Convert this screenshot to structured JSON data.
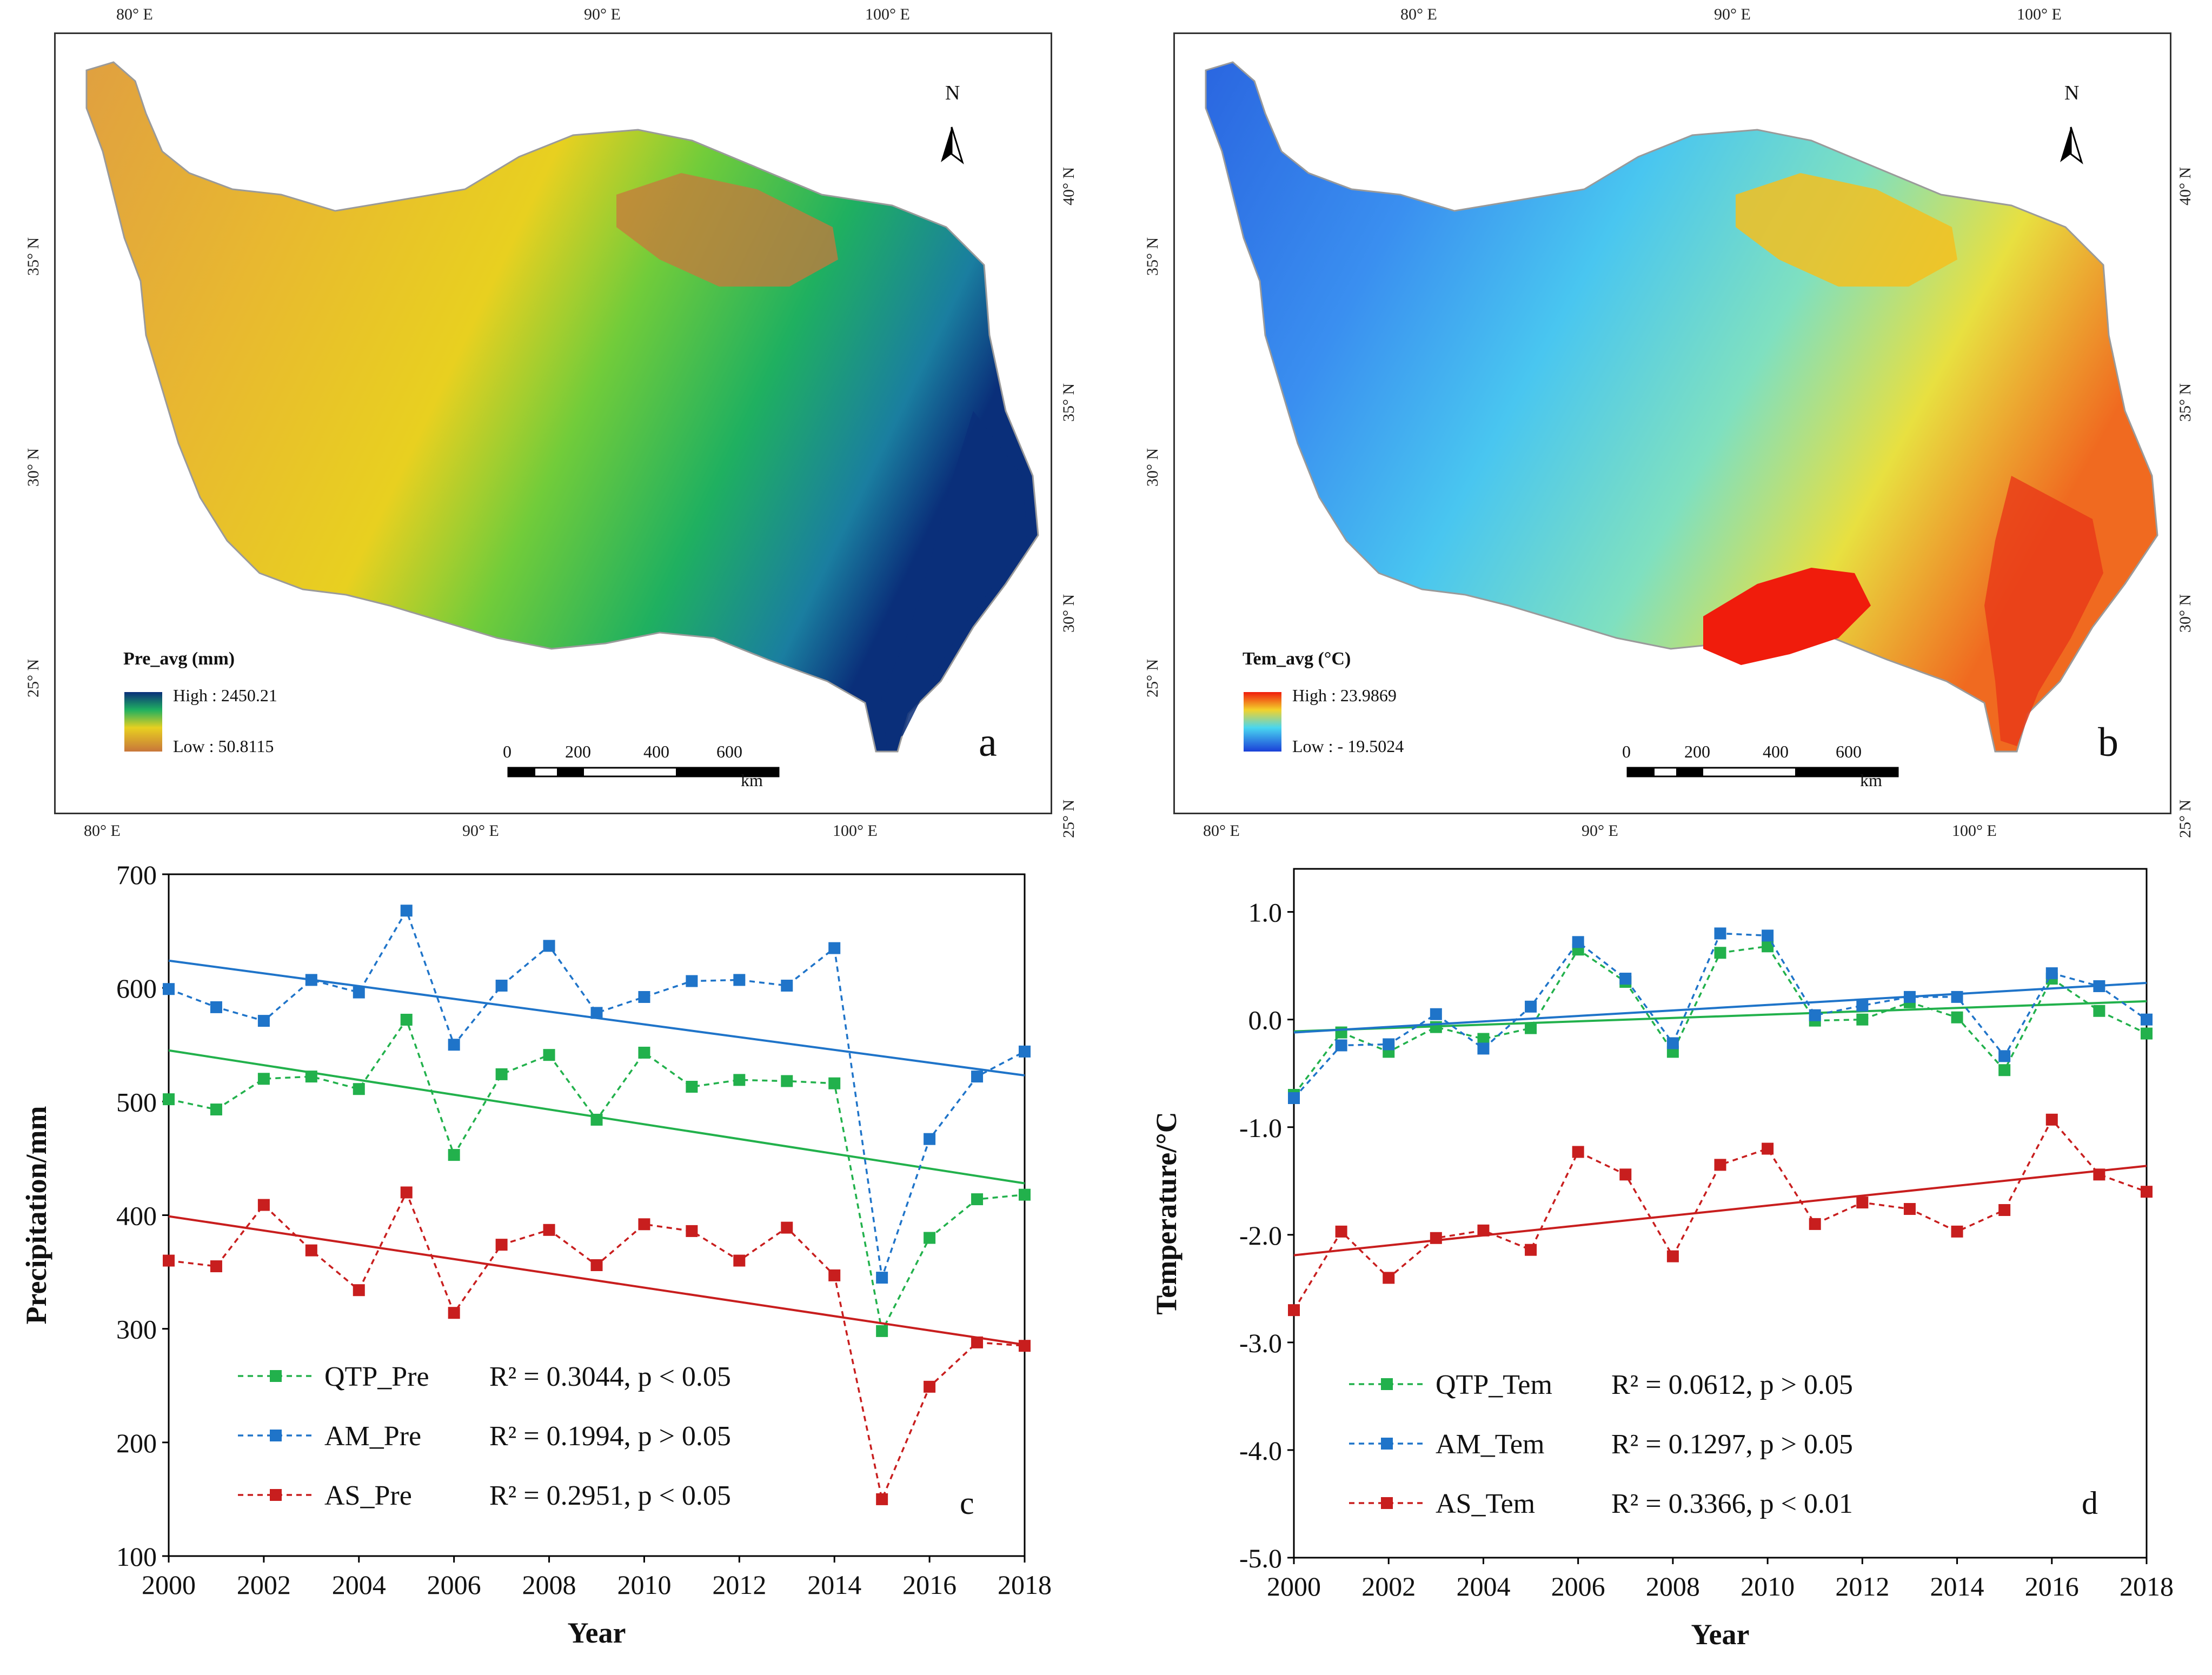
{
  "maps": [
    {
      "id": "a",
      "letter": "a",
      "legend_title": "Pre_avg (mm)",
      "legend_high": "High : 2450.21",
      "legend_low": "Low : 50.8115",
      "top_lon": [
        "80° E",
        "90° E",
        "100° E"
      ],
      "bottom_lon": [
        "80° E",
        "90° E",
        "100° E"
      ],
      "left_lat": [
        "35° N",
        "30° N",
        "25° N"
      ],
      "right_lat": [
        "40° N",
        "35° N",
        "30° N",
        "25° N"
      ],
      "scale_ticks": [
        "0",
        "200",
        "400",
        "600"
      ],
      "scale_unit": "km",
      "north": "N",
      "colors": {
        "low": "#c8763a",
        "mid": "#e8d018",
        "green": "#2cb840",
        "high": "#0a2f7a",
        "desert": "#c8783c"
      }
    },
    {
      "id": "b",
      "letter": "b",
      "legend_title": "Tem_avg (°C)",
      "legend_high": "High : 23.9869",
      "legend_low": "Low :  - 19.5024",
      "top_lon": [
        "80° E",
        "90° E",
        "100° E"
      ],
      "bottom_lon": [
        "80° E",
        "90° E",
        "100° E"
      ],
      "left_lat": [
        "35° N",
        "30° N",
        "25° N"
      ],
      "right_lat": [
        "40° N",
        "35° N",
        "30° N",
        "25° N"
      ],
      "scale_ticks": [
        "0",
        "200",
        "400",
        "600"
      ],
      "scale_unit": "km",
      "north": "N",
      "colors": {
        "low": "#1a3fd8",
        "mid": "#49d6f0",
        "warm": "#f3d22a",
        "high": "#f01c0c"
      }
    }
  ],
  "chart_data": [
    {
      "id": "c",
      "type": "line",
      "letter": "c",
      "xlabel": "Year",
      "ylabel": "Precipitation/mm",
      "x": [
        2000,
        2001,
        2002,
        2003,
        2004,
        2005,
        2006,
        2007,
        2008,
        2009,
        2010,
        2011,
        2012,
        2013,
        2014,
        2015,
        2016,
        2017,
        2018
      ],
      "xticks": [
        "2000",
        "2002",
        "2004",
        "2006",
        "2008",
        "2010",
        "2012",
        "2014",
        "2016",
        "2018"
      ],
      "yticks": [
        "100",
        "200",
        "300",
        "400",
        "500",
        "600",
        "700"
      ],
      "ylim": [
        100,
        700
      ],
      "xlim": [
        2000,
        2018
      ],
      "series": [
        {
          "name": "QTP_Pre",
          "color": "#22b14c",
          "r2": "R² = 0.3044, p < 0.05",
          "values": [
            502,
            493,
            520,
            522,
            511,
            572,
            453,
            524,
            541,
            484,
            543,
            513,
            519,
            518,
            516,
            298,
            380,
            414,
            418
          ],
          "trend": [
            545,
            428
          ]
        },
        {
          "name": "AM_Pre",
          "color": "#1f74c9",
          "r2": "R² = 0.1994, p > 0.05",
          "values": [
            599,
            583,
            571,
            607,
            596,
            668,
            550,
            602,
            637,
            578,
            592,
            606,
            607,
            602,
            635,
            345,
            467,
            522,
            544
          ],
          "trend": [
            624,
            523
          ]
        },
        {
          "name": "AS_Pre",
          "color": "#c81e1e",
          "r2": "R² = 0.2951, p < 0.05",
          "values": [
            360,
            355,
            409,
            369,
            334,
            420,
            314,
            374,
            387,
            356,
            392,
            386,
            360,
            389,
            347,
            150,
            249,
            288,
            285
          ],
          "trend": [
            399,
            286
          ]
        }
      ],
      "legend_r2_labels": [
        "R² = 0.3044, p < 0.05",
        "R² = 0.1994, p > 0.05",
        "R² = 0.2951, p < 0.05"
      ]
    },
    {
      "id": "d",
      "type": "line",
      "letter": "d",
      "xlabel": "Year",
      "ylabel": "Temperature/°C",
      "x": [
        2000,
        2001,
        2002,
        2003,
        2004,
        2005,
        2006,
        2007,
        2008,
        2009,
        2010,
        2011,
        2012,
        2013,
        2014,
        2015,
        2016,
        2017,
        2018
      ],
      "xticks": [
        "2000",
        "2002",
        "2004",
        "2006",
        "2008",
        "2010",
        "2012",
        "2014",
        "2016",
        "2018"
      ],
      "yticks": [
        "-5.0",
        "-4.0",
        "-3.0",
        "-2.0",
        "-1.0",
        "0.0",
        "1.0"
      ],
      "ylim": [
        -5.0,
        1.4
      ],
      "xlim": [
        2000,
        2018
      ],
      "series": [
        {
          "name": "QTP_Tem",
          "color": "#22b14c",
          "r2": "R² = 0.0612, p > 0.05",
          "values": [
            -0.7,
            -0.12,
            -0.3,
            -0.07,
            -0.18,
            -0.08,
            0.65,
            0.35,
            -0.3,
            0.62,
            0.68,
            -0.01,
            0.0,
            0.16,
            0.02,
            -0.47,
            0.38,
            0.08,
            -0.13
          ],
          "trend": [
            -0.11,
            0.17
          ]
        },
        {
          "name": "AM_Tem",
          "color": "#1f74c9",
          "r2": "R² = 0.1297, p > 0.05",
          "values": [
            -0.73,
            -0.24,
            -0.23,
            0.05,
            -0.27,
            0.12,
            0.72,
            0.38,
            -0.22,
            0.8,
            0.78,
            0.04,
            0.13,
            0.21,
            0.21,
            -0.34,
            0.43,
            0.31,
            0.0
          ],
          "trend": [
            -0.12,
            0.34
          ]
        },
        {
          "name": "AS_Tem",
          "color": "#c81e1e",
          "r2": "R² = 0.3366, p < 0.01",
          "values": [
            -2.7,
            -1.97,
            -2.4,
            -2.03,
            -1.96,
            -2.14,
            -1.23,
            -1.44,
            -2.2,
            -1.35,
            -1.2,
            -1.9,
            -1.7,
            -1.76,
            -1.97,
            -1.77,
            -0.93,
            -1.44,
            -1.6
          ],
          "trend": [
            -2.19,
            -1.36
          ]
        }
      ],
      "legend_r2_labels": [
        "R² = 0.0612, p > 0.05",
        "R² = 0.1297, p > 0.05",
        "R² = 0.3366, p < 0.01"
      ]
    }
  ]
}
